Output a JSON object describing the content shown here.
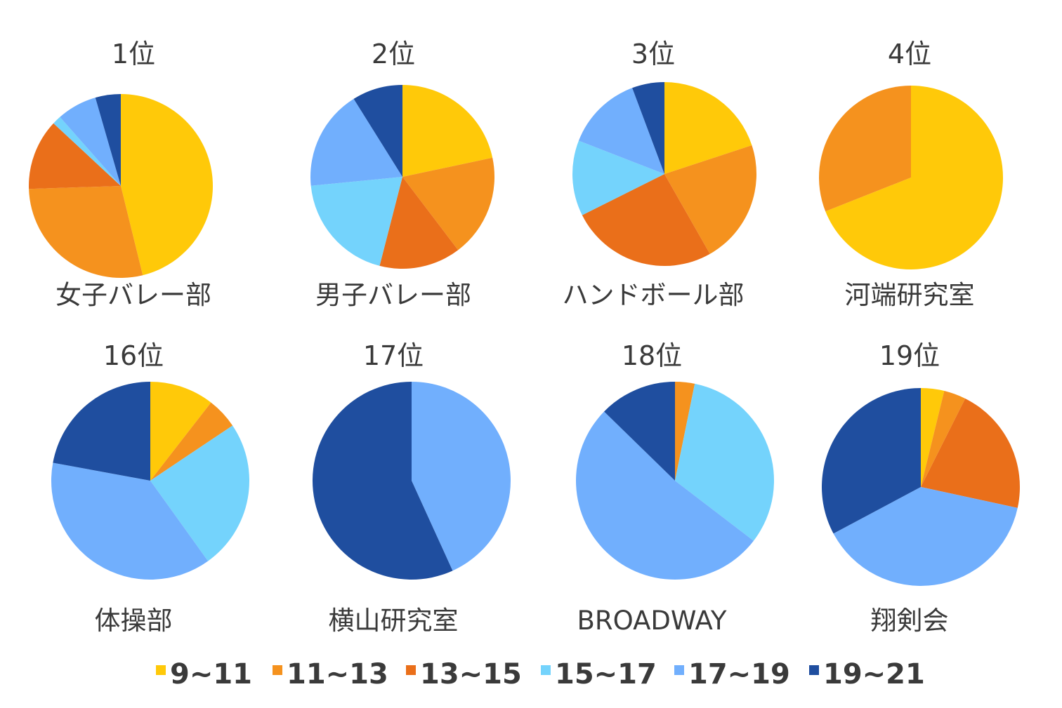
{
  "chart_data": {
    "type": "pie",
    "legend": {
      "placement": "bottom",
      "entries": [
        {
          "label": "9~11",
          "color": "#FFC909"
        },
        {
          "label": "11~13",
          "color": "#F5921E"
        },
        {
          "label": "13~15",
          "color": "#EA6F1A"
        },
        {
          "label": "15~17",
          "color": "#74D3FC"
        },
        {
          "label": "17~19",
          "color": "#71AFFD"
        },
        {
          "label": "19~21",
          "color": "#1F4E9F"
        }
      ]
    },
    "charts": [
      {
        "rank": "1位",
        "name": "女子バレー部",
        "values": [
          44.5,
          27.3,
          12.0,
          1.5,
          6.8,
          4.3
        ]
      },
      {
        "rank": "2位",
        "name": "男子バレー部",
        "values": [
          19.5,
          16.2,
          12.9,
          17.5,
          15.9,
          8.0
        ]
      },
      {
        "rank": "3位",
        "name": "ハンドボール部",
        "values": [
          18.9,
          20.7,
          24.5,
          12.6,
          12.7,
          5.4
        ]
      },
      {
        "rank": "4位",
        "name": "河端研究室",
        "values": [
          69.0,
          31.0,
          0,
          0,
          0,
          0
        ]
      },
      {
        "rank": "16位",
        "name": "体操部",
        "values": [
          10.5,
          5.1,
          0,
          24.5,
          37.8,
          22.1
        ]
      },
      {
        "rank": "17位",
        "name": "横山研究室",
        "values": [
          0,
          0,
          0,
          0,
          43.2,
          56.8
        ]
      },
      {
        "rank": "18位",
        "name": "BROADWAY",
        "values": [
          0,
          3.2,
          0,
          32.2,
          51.9,
          12.7
        ]
      },
      {
        "rank": "19位",
        "name": "翔剣会",
        "values": [
          3.8,
          3.6,
          21.0,
          0,
          38.8,
          32.8
        ]
      }
    ]
  }
}
